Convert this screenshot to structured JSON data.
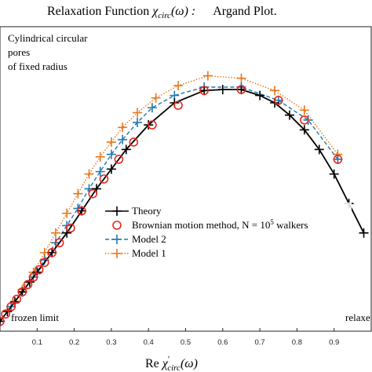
{
  "chart_data": {
    "type": "line",
    "title": "Relaxation Function χ′circ(ω) :     Argand Plot.",
    "title_parts": {
      "main": "Relaxation Function ",
      "chi": "χ",
      "sub": "circ",
      "arg": "(ω) :",
      "tail": "Argand Plot."
    },
    "xlabel": "Re χ′circ(ω)",
    "xlabel_parts": {
      "re": "Re ",
      "chi": "χ",
      "prime": "′",
      "sub": "circ",
      "arg": "(ω)"
    },
    "ylabel": "",
    "xlim": [
      0,
      1
    ],
    "ylim": [
      0,
      0.62
    ],
    "xticks": [
      "0.1",
      "0.2",
      "0.3",
      "0.4",
      "0.5",
      "0.6",
      "0.7",
      "0.8",
      "0.9"
    ],
    "grid": false,
    "legend_position": "center-left",
    "annotations": {
      "geometry": [
        "Cylindrical circular",
        "pores",
        "of fixed radius"
      ],
      "left_limit": "frozen limit",
      "right_limit": "relaxe"
    },
    "legend": {
      "theory": "Theory",
      "brownian": "Brownian motion method, N = 10",
      "brownian_sup": "5",
      "brownian_tail": " walkers",
      "model2": "Model 2",
      "model1": "Model 1"
    },
    "series": [
      {
        "name": "Theory",
        "color": "#000000",
        "style": "solid",
        "marker": "plus",
        "x": [
          0.0,
          0.02,
          0.04,
          0.06,
          0.08,
          0.1,
          0.14,
          0.18,
          0.22,
          0.26,
          0.3,
          0.34,
          0.4,
          0.47,
          0.55,
          0.6,
          0.65,
          0.7,
          0.74,
          0.78,
          0.82,
          0.86,
          0.9,
          0.94,
          0.98
        ],
        "y": [
          0.02,
          0.04,
          0.06,
          0.08,
          0.1,
          0.12,
          0.16,
          0.2,
          0.245,
          0.29,
          0.33,
          0.37,
          0.42,
          0.465,
          0.49,
          0.492,
          0.492,
          0.48,
          0.465,
          0.44,
          0.41,
          0.37,
          0.32,
          0.26,
          0.2
        ]
      },
      {
        "name": "Brownian motion method, N = 10^5 walkers",
        "color": "#e8291c",
        "style": "none",
        "marker": "circle",
        "x": [
          0.0,
          0.015,
          0.03,
          0.045,
          0.06,
          0.075,
          0.09,
          0.105,
          0.12,
          0.14,
          0.16,
          0.19,
          0.22,
          0.25,
          0.28,
          0.32,
          0.36,
          0.41,
          0.48,
          0.55,
          0.65,
          0.75,
          0.82,
          0.91
        ],
        "y": [
          0.02,
          0.035,
          0.05,
          0.065,
          0.08,
          0.095,
          0.11,
          0.125,
          0.14,
          0.16,
          0.18,
          0.21,
          0.245,
          0.28,
          0.31,
          0.35,
          0.385,
          0.42,
          0.46,
          0.49,
          0.492,
          0.47,
          0.43,
          0.35
        ]
      },
      {
        "name": "Model 2",
        "color": "#1f77b4",
        "style": "dashed",
        "marker": "plus",
        "x": [
          0.0,
          0.03,
          0.06,
          0.09,
          0.12,
          0.15,
          0.18,
          0.21,
          0.24,
          0.27,
          0.3,
          0.33,
          0.37,
          0.41,
          0.47,
          0.55,
          0.65,
          0.75,
          0.83,
          0.91
        ],
        "y": [
          0.02,
          0.05,
          0.08,
          0.11,
          0.145,
          0.18,
          0.215,
          0.25,
          0.29,
          0.325,
          0.36,
          0.39,
          0.425,
          0.455,
          0.48,
          0.497,
          0.497,
          0.47,
          0.43,
          0.35
        ]
      },
      {
        "name": "Model 1",
        "color": "#e8771c",
        "style": "dotted",
        "marker": "plus",
        "x": [
          0.0,
          0.03,
          0.06,
          0.09,
          0.12,
          0.15,
          0.18,
          0.21,
          0.24,
          0.27,
          0.3,
          0.33,
          0.37,
          0.42,
          0.48,
          0.56,
          0.65,
          0.74,
          0.82,
          0.91
        ],
        "y": [
          0.02,
          0.05,
          0.085,
          0.12,
          0.16,
          0.2,
          0.24,
          0.28,
          0.32,
          0.355,
          0.385,
          0.415,
          0.445,
          0.475,
          0.5,
          0.52,
          0.515,
          0.49,
          0.45,
          0.36
        ]
      }
    ]
  }
}
